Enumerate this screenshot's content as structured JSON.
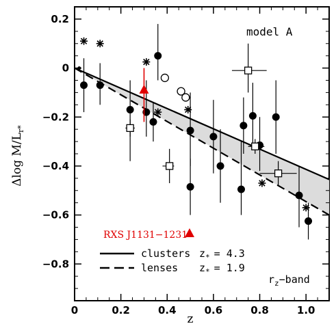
{
  "chart_data": {
    "type": "scatter",
    "xlabel": "z",
    "ylabel": "Δlog M/L",
    "ylabel_subscript": "r*",
    "xlim": [
      0,
      1.1
    ],
    "ylim": [
      -0.95,
      0.25
    ],
    "x_ticks": [
      {
        "value": 0,
        "label": "0"
      },
      {
        "value": 0.2,
        "label": "0.2"
      },
      {
        "value": 0.4,
        "label": "0.4"
      },
      {
        "value": 0.6,
        "label": "0.6"
      },
      {
        "value": 0.8,
        "label": "0.8"
      },
      {
        "value": 1.0,
        "label": "1.0"
      }
    ],
    "y_ticks": [
      {
        "value": 0.2,
        "label": "0.2"
      },
      {
        "value": 0,
        "label": "0"
      },
      {
        "value": -0.2,
        "label": "−0.2"
      },
      {
        "value": -0.4,
        "label": "−0.4"
      },
      {
        "value": -0.6,
        "label": "−0.6"
      },
      {
        "value": -0.8,
        "label": "−0.8"
      }
    ],
    "model_label": "model A",
    "band_label": "r",
    "band_label_subscript": "z",
    "band_label_suffix": "−band",
    "highlight": {
      "name": "RXS J1131−1231",
      "x": 0.3,
      "y": -0.09,
      "color": "#e00000",
      "err_low": -0.22,
      "err_high": 0.0
    },
    "legend": [
      {
        "line": "solid",
        "label": "clusters",
        "zf_label": "z",
        "zf_sub": "*",
        "zf_value": "= 4.3"
      },
      {
        "line": "dashed",
        "label": "lenses",
        "zf_label": "z",
        "zf_sub": "*",
        "zf_value": "= 1.9"
      }
    ],
    "fit_clusters": {
      "x": [
        0,
        1.1
      ],
      "y": [
        0,
        -0.455
      ]
    },
    "fit_lenses": {
      "x": [
        0,
        1.1
      ],
      "y": [
        0,
        -0.6
      ]
    },
    "filled_circles": [
      {
        "x": 0.04,
        "y": -0.07,
        "lo": -0.18,
        "hi": 0.04
      },
      {
        "x": 0.11,
        "y": -0.07,
        "lo": -0.15,
        "hi": 0.02
      },
      {
        "x": 0.24,
        "y": -0.17,
        "lo": -0.38,
        "hi": -0.05
      },
      {
        "x": 0.31,
        "y": -0.18,
        "lo": -0.28,
        "hi": -0.05
      },
      {
        "x": 0.34,
        "y": -0.22,
        "lo": -0.3,
        "hi": -0.14
      },
      {
        "x": 0.36,
        "y": 0.05,
        "lo": -0.05,
        "hi": 0.18
      },
      {
        "x": 0.5,
        "y": -0.255,
        "lo": -0.4,
        "hi": -0.1
      },
      {
        "x": 0.5,
        "y": -0.485,
        "lo": -0.6,
        "hi": -0.37
      },
      {
        "x": 0.6,
        "y": -0.28,
        "lo": -0.43,
        "hi": -0.13
      },
      {
        "x": 0.63,
        "y": -0.4,
        "lo": -0.55,
        "hi": -0.25
      },
      {
        "x": 0.72,
        "y": -0.495,
        "lo": -0.6,
        "hi": -0.3
      },
      {
        "x": 0.73,
        "y": -0.235,
        "lo": -0.35,
        "hi": -0.12
      },
      {
        "x": 0.77,
        "y": -0.195,
        "lo": -0.33,
        "hi": -0.06
      },
      {
        "x": 0.8,
        "y": -0.315,
        "lo": -0.42,
        "hi": -0.2
      },
      {
        "x": 0.87,
        "y": -0.2,
        "lo": -0.35,
        "hi": -0.05
      },
      {
        "x": 0.97,
        "y": -0.52,
        "lo": -0.65,
        "hi": -0.4
      },
      {
        "x": 1.01,
        "y": -0.625,
        "lo": -0.7,
        "hi": -0.55
      }
    ],
    "open_circles": [
      {
        "x": 0.39,
        "y": -0.04
      },
      {
        "x": 0.46,
        "y": -0.095
      },
      {
        "x": 0.48,
        "y": -0.12
      }
    ],
    "open_squares": [
      {
        "x": 0.24,
        "y": -0.245,
        "xlo": 0.22,
        "xhi": 0.26,
        "lo": -0.28,
        "hi": -0.21
      },
      {
        "x": 0.41,
        "y": -0.4,
        "xlo": 0.38,
        "xhi": 0.43,
        "lo": -0.47,
        "hi": -0.33
      },
      {
        "x": 0.75,
        "y": -0.01,
        "xlo": 0.68,
        "xhi": 0.83,
        "lo": -0.1,
        "hi": 0.1
      },
      {
        "x": 0.78,
        "y": -0.32,
        "xlo": 0.75,
        "xhi": 0.82,
        "lo": -0.35,
        "hi": -0.29
      },
      {
        "x": 0.88,
        "y": -0.43,
        "xlo": 0.8,
        "xhi": 0.96,
        "lo": -0.48,
        "hi": -0.38
      }
    ],
    "asterisks": [
      {
        "x": 0.04,
        "y": 0.11
      },
      {
        "x": 0.11,
        "y": 0.1
      },
      {
        "x": 0.31,
        "y": 0.025
      },
      {
        "x": 0.36,
        "y": -0.18
      },
      {
        "x": 0.49,
        "y": -0.17
      },
      {
        "x": 0.81,
        "y": -0.47
      },
      {
        "x": 1.0,
        "y": -0.57
      }
    ],
    "zero_point": {
      "x": 0.02,
      "y": 0.0
    }
  }
}
